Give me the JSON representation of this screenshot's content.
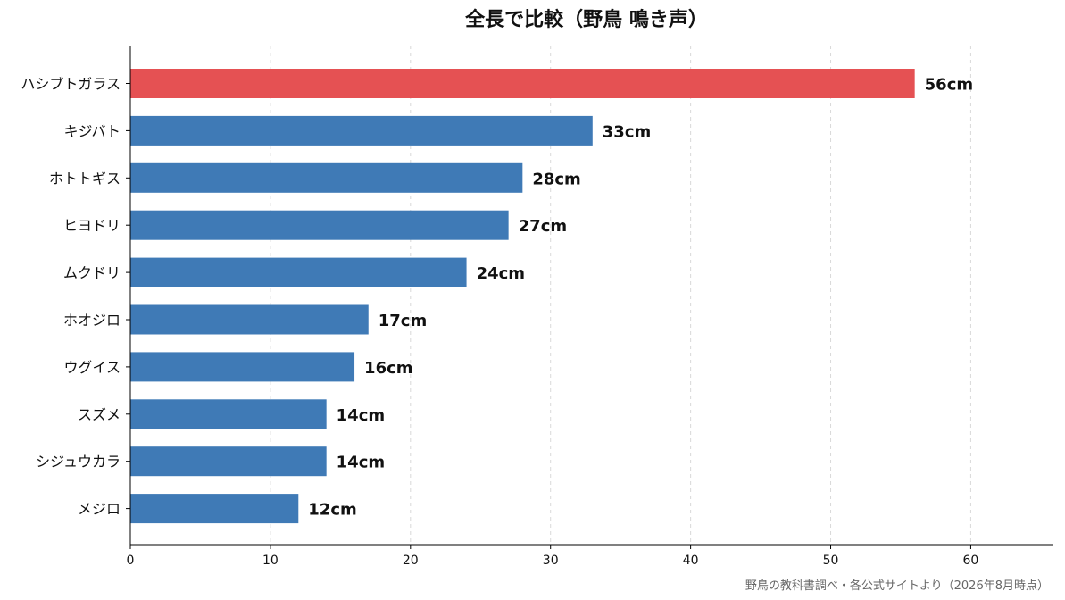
{
  "chart_data": {
    "type": "bar",
    "orientation": "horizontal",
    "title": "全長で比較（野鳥 鳴き声）",
    "categories": [
      "ハシブトガラス",
      "キジバト",
      "ホトトギス",
      "ヒヨドリ",
      "ムクドリ",
      "ホオジロ",
      "ウグイス",
      "スズメ",
      "シジュウカラ",
      "メジロ"
    ],
    "values": [
      56,
      33,
      28,
      27,
      24,
      17,
      16,
      14,
      14,
      12
    ],
    "data_labels": [
      "56cm",
      "33cm",
      "28cm",
      "27cm",
      "24cm",
      "17cm",
      "16cm",
      "14cm",
      "14cm",
      "12cm"
    ],
    "xlim": [
      0,
      65.9
    ],
    "xticks": [
      "0",
      "10",
      "20",
      "30",
      "40",
      "50",
      "60"
    ],
    "xtick_values": [
      0,
      10,
      20,
      30,
      40,
      50,
      60
    ],
    "grid": "vertical dashed",
    "colors": {
      "highlight": "#e55153",
      "default": "#3f7ab6"
    },
    "highlight_index": 0
  },
  "footer": {
    "source": "野鳥の教科書調べ・各公式サイトより（2026年8月時点）"
  }
}
